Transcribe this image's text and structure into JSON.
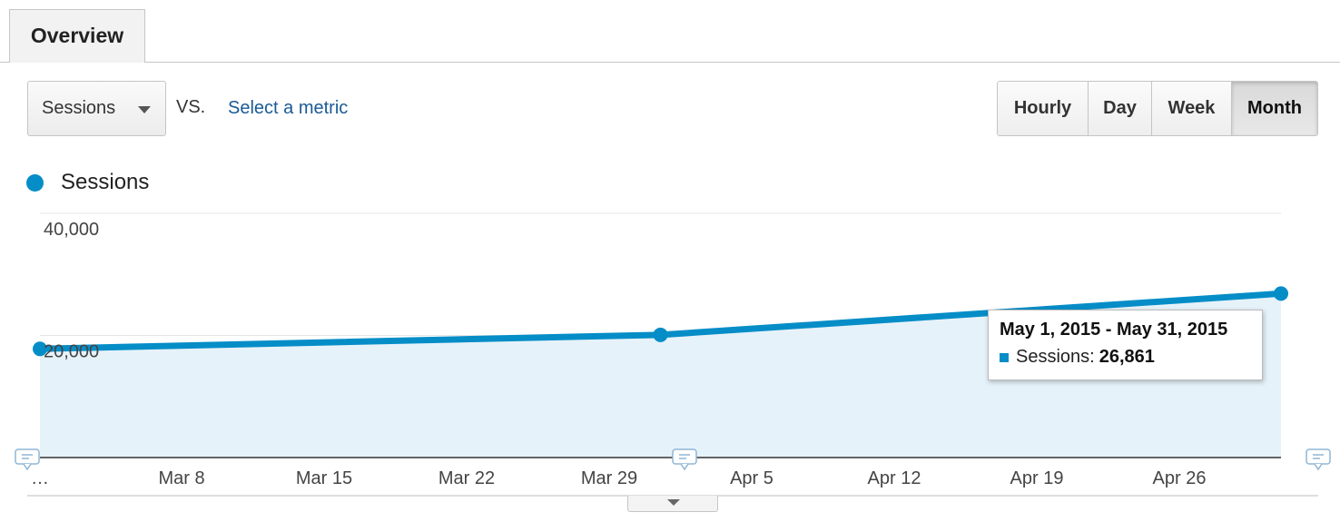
{
  "tabs": {
    "overview": "Overview"
  },
  "controls": {
    "metric": "Sessions",
    "vs": "VS.",
    "select_metric": "Select a metric",
    "ranges": [
      "Hourly",
      "Day",
      "Week",
      "Month"
    ],
    "active_range": "Month"
  },
  "legend": {
    "label": "Sessions",
    "color": "#058dc7"
  },
  "tooltip": {
    "title": "May 1, 2015 - May 31, 2015",
    "series": "Sessions:",
    "value": "26,861"
  },
  "chart_data": {
    "type": "area",
    "ylim": [
      0,
      40000
    ],
    "yticks": [
      "40,000",
      "20,000"
    ],
    "xticks": [
      "…",
      "Mar 8",
      "Mar 15",
      "Mar 22",
      "Mar 29",
      "Apr 5",
      "Apr 12",
      "Apr 19",
      "Apr 26"
    ],
    "series": [
      {
        "name": "Sessions",
        "color": "#058dc7",
        "points": [
          {
            "x": "Mar 1, 2015",
            "y": 17800
          },
          {
            "x": "Apr 1, 2015",
            "y": 20100
          },
          {
            "x": "May 1, 2015",
            "y": 26861
          }
        ]
      }
    ],
    "grid": true,
    "legend": "top-left"
  }
}
